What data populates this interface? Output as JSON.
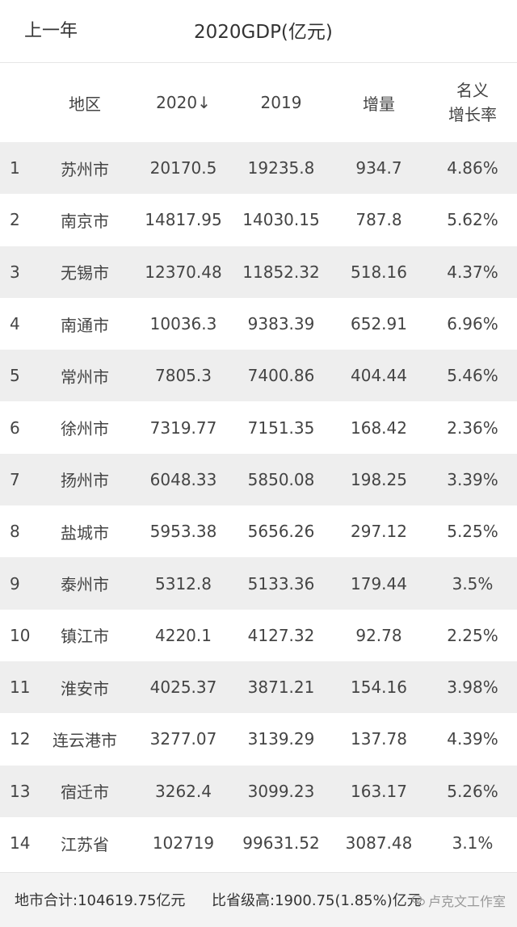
{
  "header": {
    "back_label": "上一年",
    "title": "2020GDP(亿元)"
  },
  "table": {
    "columns": [
      "",
      "地区",
      "2020↓",
      "2019",
      "增量",
      "名义",
      "增长率"
    ],
    "rows": [
      {
        "rank": "1",
        "region": "苏州市",
        "y2020": "20170.5",
        "y2019": "19235.8",
        "increase": "934.7",
        "rate": "4.86%"
      },
      {
        "rank": "2",
        "region": "南京市",
        "y2020": "14817.95",
        "y2019": "14030.15",
        "increase": "787.8",
        "rate": "5.62%"
      },
      {
        "rank": "3",
        "region": "无锡市",
        "y2020": "12370.48",
        "y2019": "11852.32",
        "increase": "518.16",
        "rate": "4.37%"
      },
      {
        "rank": "4",
        "region": "南通市",
        "y2020": "10036.3",
        "y2019": "9383.39",
        "increase": "652.91",
        "rate": "6.96%"
      },
      {
        "rank": "5",
        "region": "常州市",
        "y2020": "7805.3",
        "y2019": "7400.86",
        "increase": "404.44",
        "rate": "5.46%"
      },
      {
        "rank": "6",
        "region": "徐州市",
        "y2020": "7319.77",
        "y2019": "7151.35",
        "increase": "168.42",
        "rate": "2.36%"
      },
      {
        "rank": "7",
        "region": "扬州市",
        "y2020": "6048.33",
        "y2019": "5850.08",
        "increase": "198.25",
        "rate": "3.39%"
      },
      {
        "rank": "8",
        "region": "盐城市",
        "y2020": "5953.38",
        "y2019": "5656.26",
        "increase": "297.12",
        "rate": "5.25%"
      },
      {
        "rank": "9",
        "region": "泰州市",
        "y2020": "5312.8",
        "y2019": "5133.36",
        "increase": "179.44",
        "rate": "3.5%"
      },
      {
        "rank": "10",
        "region": "镇江市",
        "y2020": "4220.1",
        "y2019": "4127.32",
        "increase": "92.78",
        "rate": "2.25%"
      },
      {
        "rank": "11",
        "region": "淮安市",
        "y2020": "4025.37",
        "y2019": "3871.21",
        "increase": "154.16",
        "rate": "3.98%"
      },
      {
        "rank": "12",
        "region": "连云港市",
        "y2020": "3277.07",
        "y2019": "3139.29",
        "increase": "137.78",
        "rate": "4.39%"
      },
      {
        "rank": "13",
        "region": "宿迁市",
        "y2020": "3262.4",
        "y2019": "3099.23",
        "increase": "163.17",
        "rate": "5.26%"
      },
      {
        "rank": "14",
        "region": "江苏省",
        "y2020": "102719",
        "y2019": "99631.52",
        "increase": "3087.48",
        "rate": "3.1%"
      }
    ]
  },
  "footer": {
    "total": "地市合计:104619.75亿元",
    "diff": "比省级高:1900.75(1.85%)亿元",
    "watermark": "卢克文工作室",
    "watermark_icon": "wechat-icon"
  }
}
